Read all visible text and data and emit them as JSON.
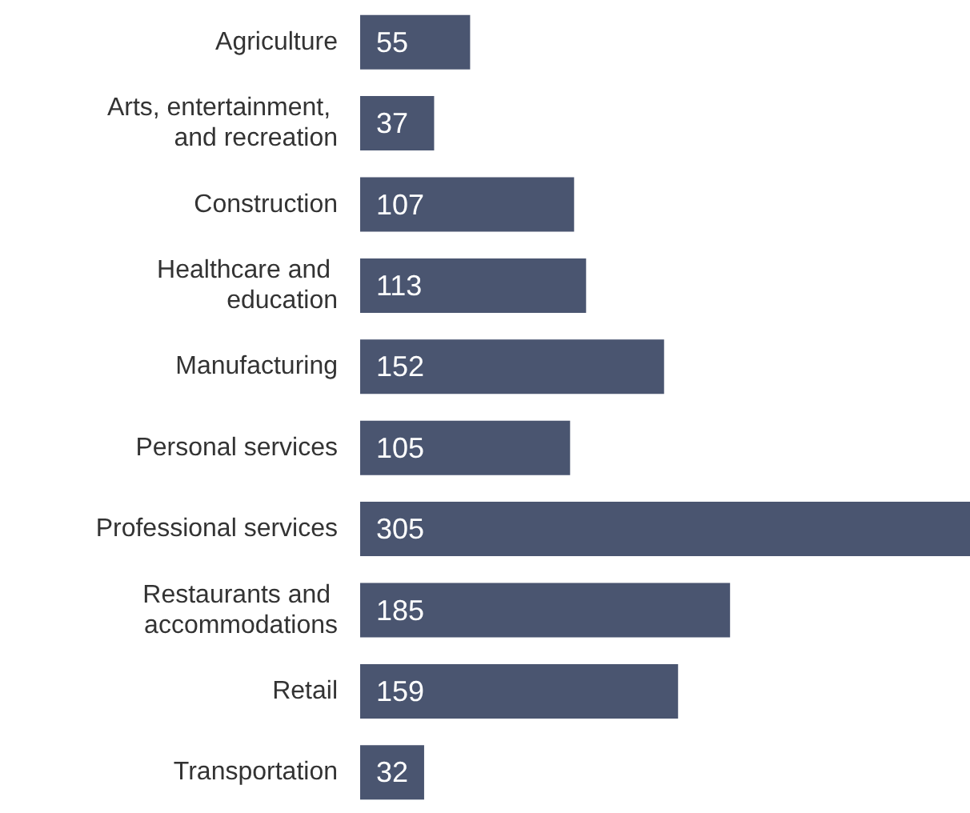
{
  "chart_data": {
    "type": "bar",
    "orientation": "horizontal",
    "categories": [
      "Agriculture",
      "Arts, entertainment, and recreation",
      "Construction",
      "Healthcare and education",
      "Manufacturing",
      "Personal services",
      "Professional services",
      "Restaurants and accommodations",
      "Retail",
      "Transportation"
    ],
    "values": [
      55,
      37,
      107,
      113,
      152,
      105,
      305,
      185,
      159,
      32
    ],
    "color": "#4a5570",
    "data_labels": true
  }
}
